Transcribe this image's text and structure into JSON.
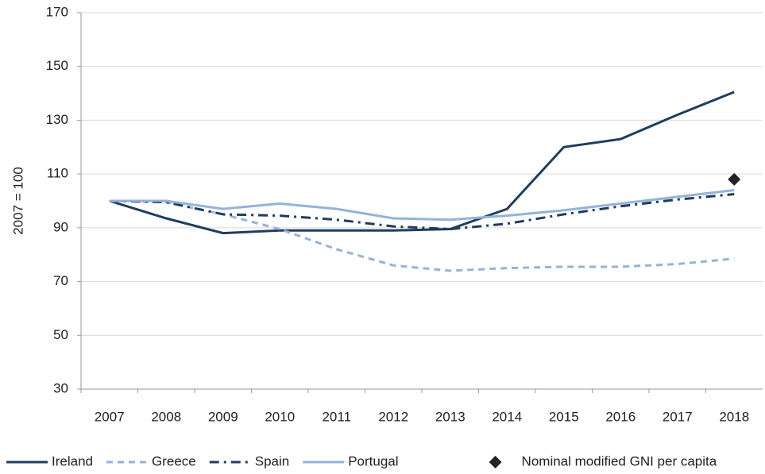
{
  "chart_data": {
    "type": "line",
    "y_label": "2007 = 100",
    "categories": [
      "2007",
      "2008",
      "2009",
      "2010",
      "2011",
      "2012",
      "2013",
      "2014",
      "2015",
      "2016",
      "2017",
      "2018"
    ],
    "series": [
      {
        "name": "Ireland",
        "color": "#1f3d5c",
        "dash": "solid",
        "values": [
          100,
          93.5,
          88,
          89,
          89,
          89,
          89.5,
          97,
          120,
          123,
          132,
          140.5
        ]
      },
      {
        "name": "Greece",
        "color": "#93b3d9",
        "dash": "dash",
        "values": [
          100,
          99.5,
          95,
          89.5,
          82,
          76,
          74,
          75,
          75.5,
          75.5,
          76.5,
          78.5
        ]
      },
      {
        "name": "Spain",
        "color": "#1f3d5c",
        "dash": "dashdot",
        "values": [
          100,
          99.5,
          95,
          94.5,
          93,
          90.5,
          89.5,
          91.5,
          95,
          98,
          100.5,
          102.5
        ]
      },
      {
        "name": "Portugal",
        "color": "#93b3d9",
        "dash": "solid",
        "values": [
          100,
          100,
          97,
          99,
          97,
          93.5,
          93,
          94.5,
          96.5,
          99,
          101.5,
          104
        ]
      },
      {
        "name": "Nominal modified GNI per capita",
        "color": "#222222",
        "marker": "diamond",
        "values": [
          null,
          null,
          null,
          null,
          null,
          null,
          null,
          null,
          null,
          null,
          null,
          108
        ]
      }
    ],
    "ylim": [
      30,
      170
    ],
    "yticks": [
      30,
      50,
      70,
      90,
      110,
      130,
      150,
      170
    ],
    "grid": true,
    "legend": "bottom"
  }
}
